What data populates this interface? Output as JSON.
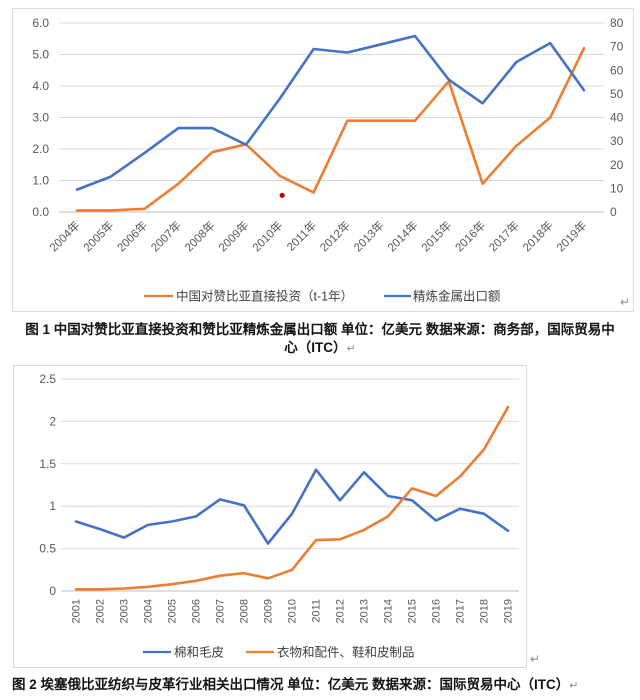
{
  "colors": {
    "blue": "#4472C4",
    "orange": "#ED7D31",
    "grid": "#D9D9D9",
    "axis_line": "#BFBFBF",
    "axis_text": "#595959",
    "red_dot": "#C00000"
  },
  "marks": {
    "paragraph_return": "↵"
  },
  "chart_data": [
    {
      "id": "chart1",
      "type": "line",
      "title": "",
      "categories": [
        "2004年",
        "2005年",
        "2006年",
        "2007年",
        "2008年",
        "2009年",
        "2010年",
        "2011年",
        "2012年",
        "2013年",
        "2014年",
        "2015年",
        "2016年",
        "2017年",
        "2018年",
        "2019年"
      ],
      "left_axis": {
        "min": 0,
        "max": 6,
        "ticks": [
          "6.0",
          "5.0",
          "4.0",
          "3.0",
          "2.0",
          "1.0",
          "0.0"
        ]
      },
      "right_axis": {
        "min": 0,
        "max": 80,
        "ticks": [
          "80",
          "70",
          "60",
          "50",
          "40",
          "30",
          "20",
          "10",
          "0"
        ]
      },
      "series": [
        {
          "name": "中国对赞比亚直接投资（t-1年）",
          "axis": "left",
          "color_key": "orange",
          "values": [
            0.05,
            0.05,
            0.1,
            0.9,
            1.9,
            2.15,
            1.15,
            0.62,
            2.9,
            2.9,
            2.9,
            4.15,
            0.9,
            2.1,
            3.0,
            5.2
          ]
        },
        {
          "name": "精炼金属出口额",
          "axis": "right",
          "color_key": "blue",
          "values": [
            9.5,
            15,
            25,
            35.5,
            35.5,
            28.5,
            48,
            69,
            67.5,
            71,
            74.5,
            56,
            46,
            63.5,
            71.5,
            51.5
          ]
        }
      ],
      "annotation": {
        "type": "red-dot",
        "category_offset": 6.07,
        "value": 0.53,
        "axis": "left"
      },
      "legend_position": "bottom"
    },
    {
      "id": "chart2",
      "type": "line",
      "title": "",
      "categories": [
        "2001",
        "2002",
        "2003",
        "2004",
        "2005",
        "2006",
        "2007",
        "2008",
        "2009",
        "2010",
        "2011",
        "2012",
        "2013",
        "2014",
        "2015",
        "2016",
        "2017",
        "2018",
        "2019"
      ],
      "left_axis": {
        "min": 0,
        "max": 2.5,
        "ticks": [
          "2.5",
          "2",
          "1.5",
          "1",
          "0.5",
          "0"
        ]
      },
      "series": [
        {
          "name": "棉和毛皮",
          "axis": "left",
          "color_key": "blue",
          "values": [
            0.82,
            0.73,
            0.63,
            0.78,
            0.82,
            0.88,
            1.08,
            1.01,
            0.56,
            0.91,
            1.43,
            1.07,
            1.4,
            1.12,
            1.07,
            0.83,
            0.97,
            0.91,
            0.71
          ]
        },
        {
          "name": "衣物和配件、鞋和皮制品",
          "axis": "left",
          "color_key": "orange",
          "values": [
            0.02,
            0.02,
            0.03,
            0.05,
            0.08,
            0.12,
            0.18,
            0.21,
            0.15,
            0.25,
            0.6,
            0.61,
            0.72,
            0.88,
            1.21,
            1.12,
            1.35,
            1.67,
            2.17
          ]
        }
      ],
      "legend_position": "bottom"
    }
  ],
  "captions": {
    "caption1_line1": "图 1 中国对赞比亚直接投资和赞比亚精炼金属出口额 单位：亿美元 数据来源：商务部，国际贸易中",
    "caption1_line2": "心（ITC）",
    "caption2": "图 2 埃塞俄比亚纺织与皮革行业相关出口情况 单位：亿美元 数据来源：国际贸易中心（ITC）"
  }
}
